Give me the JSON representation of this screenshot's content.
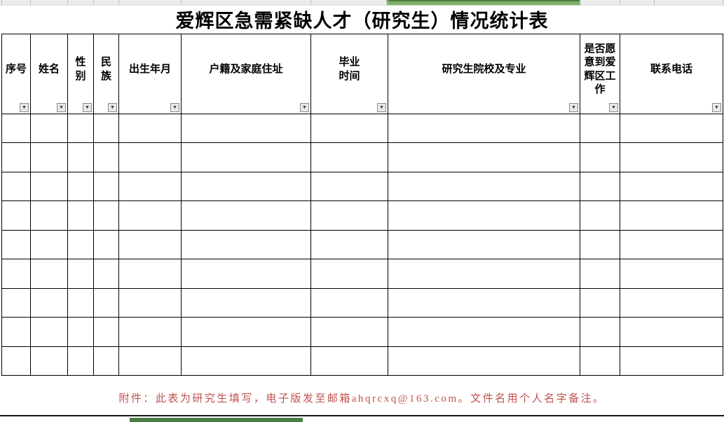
{
  "page": {
    "title": "爱辉区急需紧缺人才（研究生）情况统计表",
    "note": "附件：此表为研究生填写，电子版发至邮箱ahqrcxq@163.com。文件名用个人名字备注。"
  },
  "table": {
    "columns": [
      {
        "label": "序号"
      },
      {
        "label": "姓名"
      },
      {
        "label": "性别"
      },
      {
        "label": "民族"
      },
      {
        "label": "出生年月"
      },
      {
        "label": "户籍及家庭住址"
      },
      {
        "label": "毕业时间"
      },
      {
        "label": "研究生院校及专业"
      },
      {
        "label": "是否愿意到爱辉区工作"
      },
      {
        "label": "联系电话"
      }
    ],
    "row_count": 9,
    "rows_empty": true,
    "filter_icon": "▼"
  },
  "colors": {
    "selection_green_fill": "#7fae6a",
    "selection_green_border": "#4c7b3e",
    "bottom_green_bar": "#4a7d44",
    "note_red": "#c0504d",
    "grid_black": "#000000",
    "strip_gray": "#ececec"
  }
}
